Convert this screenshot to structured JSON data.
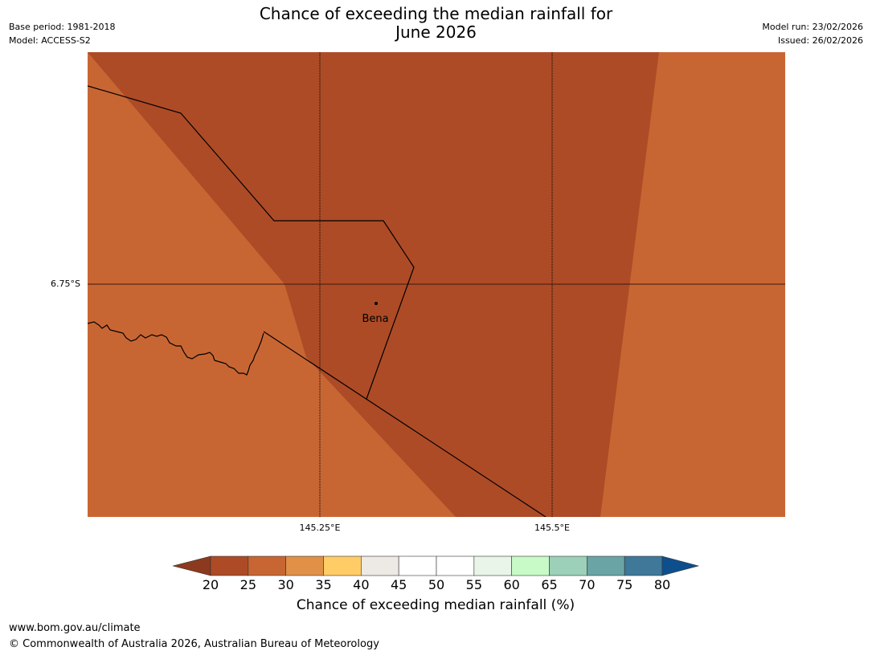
{
  "header": {
    "title_line1": "Chance of exceeding the median rainfall for",
    "title_line2": "June 2026",
    "base_period": "Base period: 1981-2018",
    "model": "Model: ACCESS-S2",
    "model_run": "Model run: 23/02/2026",
    "issued": "Issued: 26/02/2026"
  },
  "map": {
    "town_label": "Bena",
    "lat_label": "6.75°S",
    "lon_labels": [
      "145.25°E",
      "145.5°E"
    ],
    "region_colors": {
      "band_20_25": "#ad4b26",
      "band_25_30": "#c86633"
    }
  },
  "colorbar": {
    "label": "Chance of exceeding median rainfall (%)",
    "ticks": [
      "20",
      "25",
      "30",
      "35",
      "40",
      "45",
      "50",
      "55",
      "60",
      "65",
      "70",
      "75",
      "80"
    ],
    "under_color": "#8c3a1f",
    "over_color": "#0d4f8c",
    "colors": [
      "#ad4b26",
      "#c86633",
      "#e09147",
      "#ffcc66",
      "#ede9e4",
      "#ffffff",
      "#ffffff",
      "#e8f5e8",
      "#c8fac8",
      "#9dd0b8",
      "#6aa4a4",
      "#3f7898"
    ]
  },
  "footer": {
    "url": "www.bom.gov.au/climate",
    "copyright": "© Commonwealth of Australia 2026, Australian Bureau of Meteorology"
  }
}
